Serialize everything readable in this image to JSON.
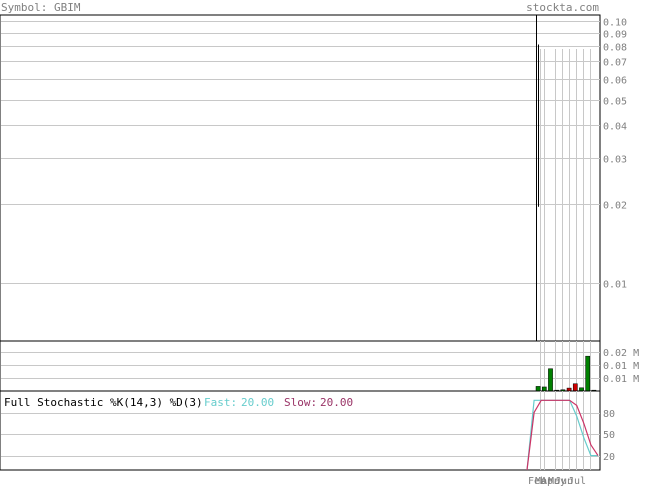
{
  "header": {
    "symbol_label": "Symbol: GBIM",
    "watermark": "stockta.com"
  },
  "colors": {
    "label_gray": "#808080",
    "grid": "#c8c8c8",
    "frame": "#000000",
    "volume_up": "#008000",
    "volume_down": "#cc0000",
    "fast_line": "#66cccc",
    "slow_line": "#cc3366",
    "slow_text": "#993366"
  },
  "chart_data": [
    {
      "type": "line",
      "title": "",
      "scale": "log",
      "ylim": [
        0.006,
        0.105
      ],
      "y_ticks": [
        "0.10",
        "0.09",
        "0.08",
        "0.07",
        "0.06",
        "0.05",
        "0.04",
        "0.03",
        "0.02",
        "0.01"
      ],
      "x": [
        0,
        1
      ],
      "series": [
        {
          "values": [
            0.081,
            0.0195
          ]
        }
      ]
    },
    {
      "type": "bar",
      "title": "",
      "y_ticks": [
        "0.02 M",
        "0.01 M",
        "0.01 M"
      ],
      "categories": [
        "1",
        "2",
        "3",
        "4",
        "5",
        "6",
        "7",
        "8",
        "9",
        "10"
      ],
      "values": [
        3300,
        2900,
        16000,
        600,
        900,
        2100,
        5200,
        2300,
        25000,
        600
      ],
      "colors": [
        "up",
        "up",
        "up",
        "up",
        "up",
        "down",
        "down",
        "up",
        "up",
        "up"
      ],
      "ylim": [
        0,
        28000
      ]
    },
    {
      "type": "line",
      "title": "Full Stochastic %K(14,3) %D(3)",
      "fast_label": "Fast:",
      "fast_value": "20.00",
      "slow_label": "Slow:",
      "slow_value": "20.00",
      "y_ticks": [
        "80",
        "50",
        "20"
      ],
      "ylim": [
        0,
        110
      ],
      "x": [
        0,
        1,
        2,
        3,
        4,
        5,
        6,
        7,
        8,
        9,
        10
      ],
      "series": [
        {
          "values": [
            0,
            97,
            97,
            97,
            97,
            97,
            97,
            75,
            45,
            20,
            20
          ]
        },
        {
          "values": [
            0,
            80,
            97,
            97,
            97,
            97,
            97,
            90,
            65,
            35,
            20
          ]
        }
      ],
      "x_tick_labels": [
        "Feb",
        "Mar",
        "Apr",
        "May",
        "Jun",
        "Jul"
      ]
    }
  ]
}
